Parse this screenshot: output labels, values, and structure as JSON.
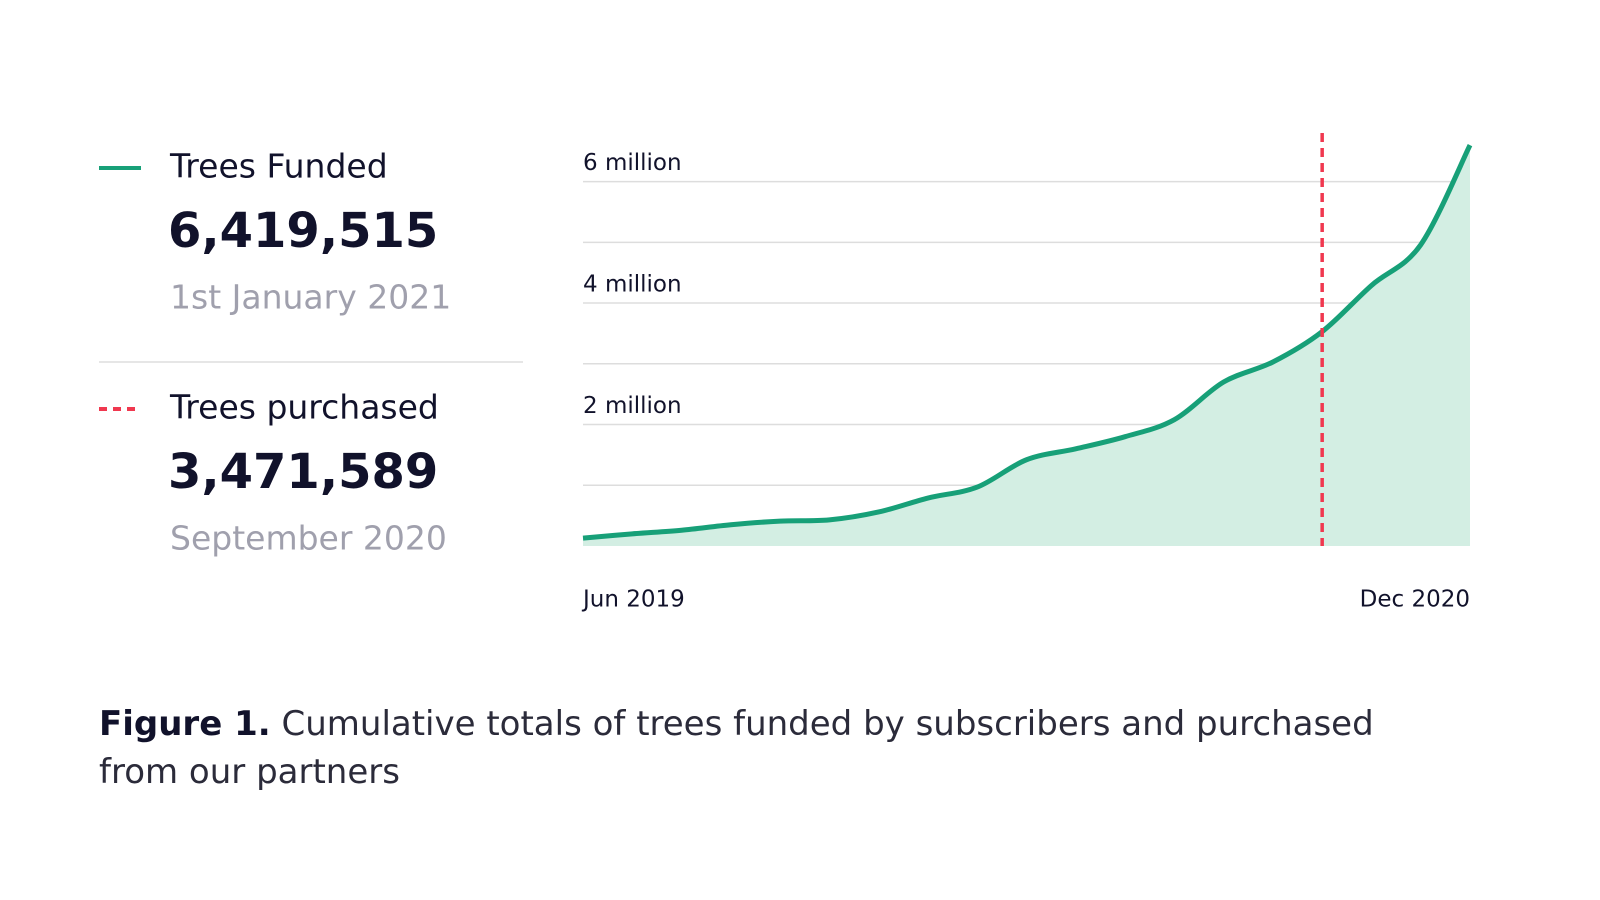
{
  "chart_data": {
    "type": "area",
    "x": [
      "2019-06",
      "2019-07",
      "2019-08",
      "2019-09",
      "2019-10",
      "2019-11",
      "2019-12",
      "2020-01",
      "2020-02",
      "2020-03",
      "2020-04",
      "2020-05",
      "2020-06",
      "2020-07",
      "2020-08",
      "2020-09",
      "2020-10",
      "2020-11",
      "2020-12"
    ],
    "series": [
      {
        "name": "Trees Funded",
        "color": "#17a078",
        "fill": "#d3eee3",
        "values": [
          130000,
          200000,
          260000,
          350000,
          410000,
          430000,
          560000,
          790000,
          970000,
          1420000,
          1600000,
          1800000,
          2080000,
          2700000,
          3030000,
          3530000,
          4290000,
          4960000,
          6600000
        ]
      }
    ],
    "ylim": [
      0,
      6800000
    ],
    "yticks": [
      {
        "value": 2000000,
        "label": "2 million"
      },
      {
        "value": 4000000,
        "label": "4 million"
      },
      {
        "value": 6000000,
        "label": "6 million"
      }
    ],
    "minor_yticks": [
      1000000,
      3000000,
      5000000
    ],
    "xticks": [
      {
        "value": "2019-06",
        "label": "Jun 2019"
      },
      {
        "value": "2020-12",
        "label": "Dec 2020"
      }
    ],
    "grid": true,
    "vline": {
      "name": "Trees purchased",
      "x": "2020-09",
      "color": "#f0384f",
      "dashed": true
    },
    "summary": [
      {
        "name": "Trees Funded",
        "value_label": "6,419,515",
        "date": "1st January 2021",
        "color": "#17a078",
        "dashed": false
      },
      {
        "name": "Trees purchased",
        "value_label": "3,471,589",
        "date": "September 2020",
        "color": "#f0384f",
        "dashed": true
      }
    ],
    "caption": {
      "label": "Figure 1.",
      "text": "Cumulative totals of trees funded by subscribers and purchased from our partners"
    }
  }
}
